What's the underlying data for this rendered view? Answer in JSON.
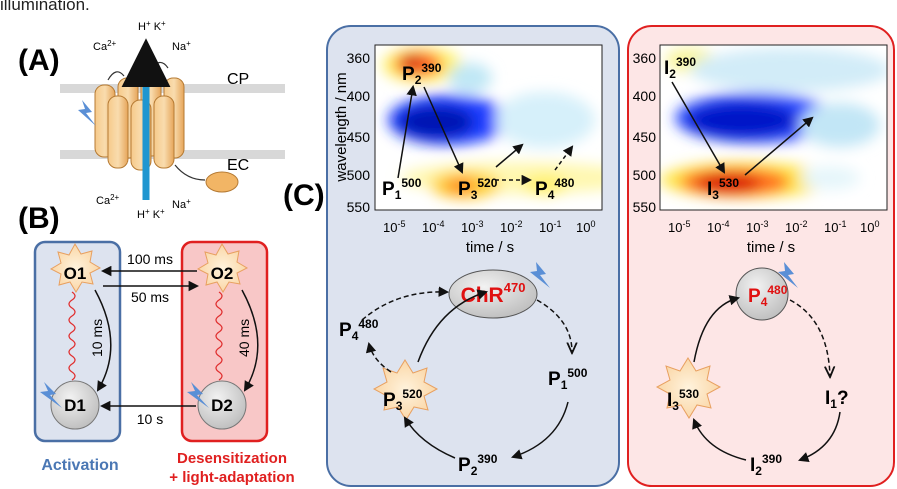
{
  "caption_tail": "illumination.",
  "panel_a": {
    "label": "(A)",
    "ions_top_left": "Ca",
    "ions_top_left_sup": "2+",
    "ions_top_mid": "H",
    "ions_top_mid_sup": "+",
    "ions_top_k": "K",
    "ions_top_k_sup": "+",
    "ions_top_right": "Na",
    "ions_top_right_sup": "+",
    "ions_bottom_left": "Ca",
    "ions_bottom_left_sup": "2+",
    "ions_bottom_h": "H",
    "ions_bottom_h_sup": "+",
    "ions_bottom_k": "K",
    "ions_bottom_k_sup": "+",
    "ions_bottom_na": "Na",
    "ions_bottom_na_sup": "+",
    "side_top": "CP",
    "side_bottom": "EC"
  },
  "panel_b": {
    "label": "(B)",
    "states": {
      "o1": "O1",
      "o2": "O2",
      "d1": "D1",
      "d2": "D2"
    },
    "rates": {
      "o1_to_o2": "100 ms",
      "o2_to_o1": "50 ms",
      "o1_to_d1": "10 ms",
      "o2_to_d2": "40 ms",
      "d2_to_d1": "10 s"
    },
    "label_activation": "Activation",
    "label_desens_1": "Desensitization",
    "label_desens_2": "+ light-adaptation",
    "colors": {
      "activation": "#4a77b4",
      "desens": "#e02020"
    }
  },
  "panel_c": {
    "label": "(C)",
    "ylabel": "wavelength / nm",
    "xlabel": "time / s",
    "yticks": [
      "360",
      "400",
      "450",
      "500",
      "550"
    ],
    "xticks_base": [
      "10",
      "10",
      "10",
      "10",
      "10",
      "10"
    ],
    "xticks_exp": [
      "-5",
      "-4",
      "-3",
      "-2",
      "-1",
      "0"
    ],
    "left_map_labels": {
      "p2": "P",
      "p2_sub": "2",
      "p2_sup": "390",
      "p1": "P",
      "p1_sub": "1",
      "p1_sup": "500",
      "p3": "P",
      "p3_sub": "3",
      "p3_sup": "520",
      "p4": "P",
      "p4_sub": "4",
      "p4_sup": "480"
    },
    "right_map_labels": {
      "i2": "I",
      "i2_sub": "2",
      "i2_sup": "390",
      "i3": "I",
      "i3_sub": "3",
      "i3_sup": "530"
    },
    "left_cycle": {
      "center": "ChR",
      "center_sup": "470",
      "p1": "P",
      "p1_sub": "1",
      "p1_sup": "500",
      "p2": "P",
      "p2_sub": "2",
      "p2_sup": "390",
      "p3": "P",
      "p3_sub": "3",
      "p3_sup": "520",
      "p4": "P",
      "p4_sub": "4",
      "p4_sup": "480"
    },
    "right_cycle": {
      "center": "P",
      "center_sub": "4",
      "center_sup": "480",
      "i1": "I",
      "i1_sub": "1",
      "i1_q": "?",
      "i2": "I",
      "i2_sub": "2",
      "i2_sup": "390",
      "i3": "I",
      "i3_sub": "3",
      "i3_sup": "530"
    },
    "colors": {
      "left_box_fill": "#dde3ef",
      "left_box_stroke": "#4a6fa5",
      "right_box_fill": "#fde6e6",
      "right_box_stroke": "#e02020",
      "accent_red": "#e01010"
    }
  }
}
